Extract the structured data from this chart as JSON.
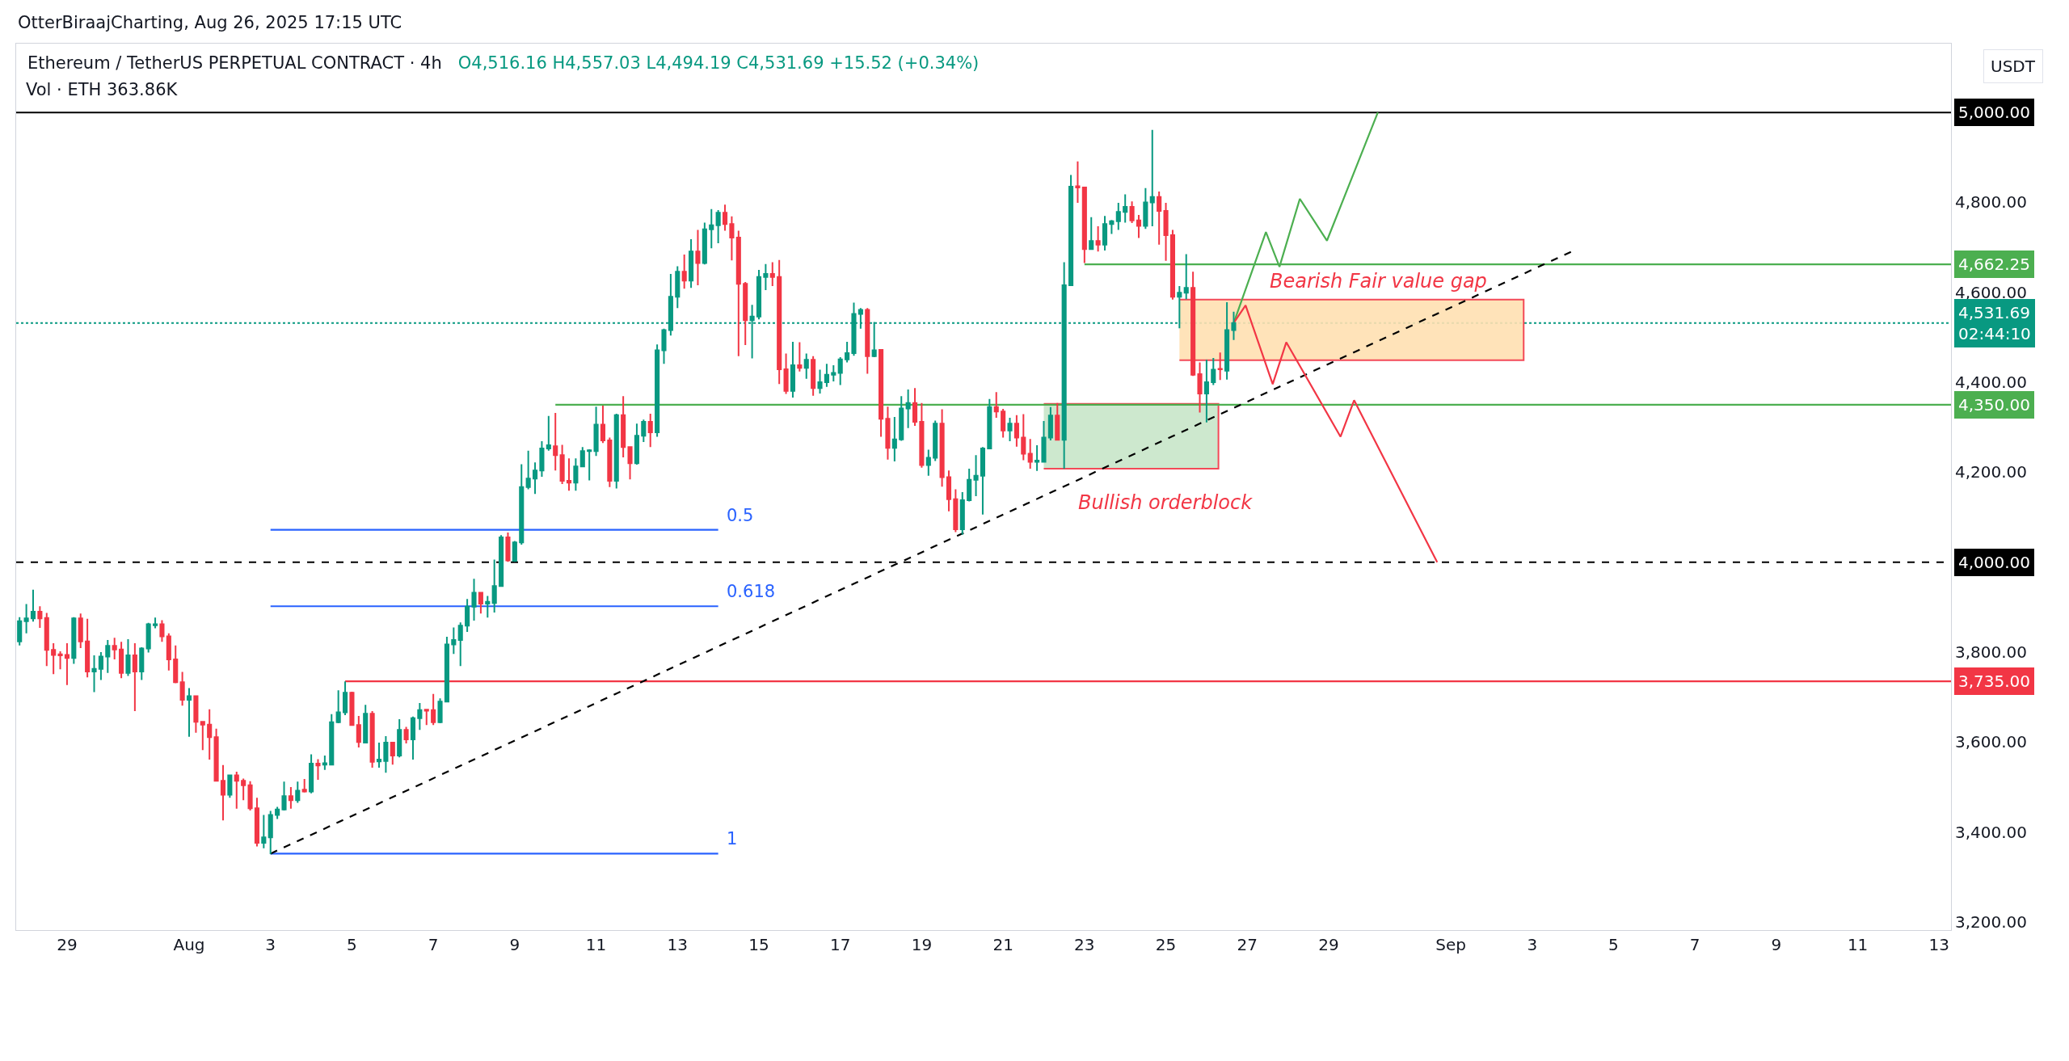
{
  "chart_data": {
    "type": "candlestick",
    "title": "Ethereum / TetherUS PERPETUAL CONTRACT · 4h",
    "subtitle": "O4,516.16 H4,557.03 L4,494.19 C4,531.69 +15.52 (+0.34%)",
    "ylabel": "USDT",
    "annotations": [
      "OtterBiraajCharting, Aug 26, 2025 17:15 UTC",
      "Vol · ETH 363.86K",
      "Bearish Fair value gap",
      "Bullish orderblock"
    ],
    "colors": [
      "#089981",
      "#089981",
      "#089981",
      "#f23645",
      "#f23645",
      "#f23645",
      "#f23645",
      "#f23645",
      "#089981",
      "#f23645",
      "#f23645",
      "#089981",
      "#089981",
      "#089981",
      "#f23645",
      "#f23645",
      "#089981",
      "#f23645",
      "#089981",
      "#089981",
      "#089981",
      "#f23645",
      "#f23645",
      "#f23645",
      "#f23645",
      "#089981",
      "#f23645",
      "#f23645",
      "#f23645",
      "#f23645",
      "#f23645",
      "#089981",
      "#f23645",
      "#f23645",
      "#f23645",
      "#f23645",
      "#089981",
      "#089981",
      "#089981",
      "#089981",
      "#f23645",
      "#089981",
      "#f23645",
      "#089981",
      "#f23645",
      "#089981",
      "#089981",
      "#089981",
      "#089981",
      "#f23645",
      "#f23645",
      "#089981",
      "#f23645",
      "#089981",
      "#089981",
      "#f23645",
      "#089981",
      "#f23645",
      "#089981",
      "#089981",
      "#f23645",
      "#f23645",
      "#089981",
      "#089981",
      "#089981",
      "#089981",
      "#089981",
      "#089981",
      "#f23645",
      "#089981",
      "#089981",
      "#089981",
      "#f23645",
      "#089981",
      "#089981",
      "#089981",
      "#089981",
      "#089981",
      "#089981",
      "#f23645",
      "#f23645",
      "#f23645",
      "#089981",
      "#089981",
      "#089981",
      "#089981",
      "#f23645",
      "#f23645",
      "#089981",
      "#f23645",
      "#f23645",
      "#089981",
      "#089981",
      "#f23645",
      "#089981",
      "#089981",
      "#089981",
      "#089981",
      "#f23645",
      "#089981",
      "#f23645",
      "#089981",
      "#089981",
      "#089981",
      "#f23645",
      "#f23645",
      "#f23645",
      "#f23645",
      "#089981",
      "#089981",
      "#089981",
      "#f23645",
      "#f23645",
      "#f23645",
      "#089981",
      "#f23645",
      "#089981",
      "#f23645",
      "#089981",
      "#089981",
      "#089981",
      "#089981",
      "#089981",
      "#089981",
      "#089981",
      "#f23645",
      "#089981",
      "#f23645",
      "#f23645",
      "#089981",
      "#089981",
      "#089981",
      "#f23645",
      "#f23645",
      "#089981",
      "#089981",
      "#f23645",
      "#f23645",
      "#f23645",
      "#089981",
      "#089981",
      "#089981",
      "#089981",
      "#089981",
      "#f23645",
      "#f23645",
      "#089981",
      "#f23645",
      "#f23645",
      "#f23645",
      "#089981",
      "#089981",
      "#089981",
      "#f23645",
      "#089981",
      "#089981",
      "#f23645",
      "#f23645",
      "#089981",
      "#f23645",
      "#089981",
      "#089981",
      "#089981",
      "#089981",
      "#f23645",
      "#f23645",
      "#089981",
      "#089981",
      "#f23645",
      "#f23645",
      "#f23645",
      "#089981",
      "#089981",
      "#f23645",
      "#f23645",
      "#089981",
      "#089981",
      "#f23645",
      "#089981",
      "#089981"
    ],
    "x": [
      "2025-07-27T20:00",
      "2025-07-28T00:00",
      "2025-07-28T04:00",
      "2025-07-28T08:00",
      "2025-07-28T12:00",
      "2025-07-28T16:00",
      "2025-07-28T20:00",
      "2025-07-29T00:00",
      "2025-07-29T04:00",
      "2025-07-29T08:00",
      "2025-07-29T12:00",
      "2025-07-29T16:00",
      "2025-07-29T20:00",
      "2025-07-30T00:00",
      "2025-07-30T04:00",
      "2025-07-30T08:00",
      "2025-07-30T12:00",
      "2025-07-30T16:00",
      "2025-07-30T20:00",
      "2025-07-31T00:00",
      "2025-07-31T04:00",
      "2025-07-31T08:00",
      "2025-07-31T12:00",
      "2025-07-31T16:00",
      "2025-07-31T20:00",
      "2025-08-01T00:00",
      "2025-08-01T04:00",
      "2025-08-01T08:00",
      "2025-08-01T12:00",
      "2025-08-01T16:00",
      "2025-08-01T20:00",
      "2025-08-02T00:00",
      "2025-08-02T04:00",
      "2025-08-02T08:00",
      "2025-08-02T12:00",
      "2025-08-02T16:00",
      "2025-08-02T20:00",
      "2025-08-03T00:00",
      "2025-08-03T04:00",
      "2025-08-03T08:00",
      "2025-08-03T12:00",
      "2025-08-03T16:00",
      "2025-08-03T20:00",
      "2025-08-04T00:00",
      "2025-08-04T04:00",
      "2025-08-04T08:00",
      "2025-08-04T12:00",
      "2025-08-04T16:00",
      "2025-08-04T20:00",
      "2025-08-05T00:00",
      "2025-08-05T04:00",
      "2025-08-05T08:00",
      "2025-08-05T12:00",
      "2025-08-05T16:00",
      "2025-08-05T20:00",
      "2025-08-06T00:00",
      "2025-08-06T04:00",
      "2025-08-06T08:00",
      "2025-08-06T12:00",
      "2025-08-06T16:00",
      "2025-08-06T20:00",
      "2025-08-07T00:00",
      "2025-08-07T04:00",
      "2025-08-07T08:00",
      "2025-08-07T12:00",
      "2025-08-07T16:00",
      "2025-08-07T20:00",
      "2025-08-08T00:00",
      "2025-08-08T04:00",
      "2025-08-08T08:00",
      "2025-08-08T12:00",
      "2025-08-08T16:00",
      "2025-08-08T20:00",
      "2025-08-09T00:00",
      "2025-08-09T04:00",
      "2025-08-09T08:00",
      "2025-08-09T12:00",
      "2025-08-09T16:00",
      "2025-08-09T20:00",
      "2025-08-10T00:00",
      "2025-08-10T04:00",
      "2025-08-10T08:00",
      "2025-08-10T12:00",
      "2025-08-10T16:00",
      "2025-08-10T20:00",
      "2025-08-11T00:00",
      "2025-08-11T04:00",
      "2025-08-11T08:00",
      "2025-08-11T12:00",
      "2025-08-11T16:00",
      "2025-08-11T20:00",
      "2025-08-12T00:00",
      "2025-08-12T04:00",
      "2025-08-12T08:00",
      "2025-08-12T12:00",
      "2025-08-12T16:00",
      "2025-08-12T20:00",
      "2025-08-13T00:00",
      "2025-08-13T04:00",
      "2025-08-13T08:00",
      "2025-08-13T12:00",
      "2025-08-13T16:00",
      "2025-08-13T20:00",
      "2025-08-14T00:00",
      "2025-08-14T04:00",
      "2025-08-14T08:00",
      "2025-08-14T12:00",
      "2025-08-14T16:00",
      "2025-08-14T20:00",
      "2025-08-15T00:00",
      "2025-08-15T04:00",
      "2025-08-15T08:00",
      "2025-08-15T12:00",
      "2025-08-15T16:00",
      "2025-08-15T20:00",
      "2025-08-16T00:00",
      "2025-08-16T04:00",
      "2025-08-16T08:00",
      "2025-08-16T12:00",
      "2025-08-16T16:00",
      "2025-08-16T20:00",
      "2025-08-17T00:00",
      "2025-08-17T04:00",
      "2025-08-17T08:00",
      "2025-08-17T12:00",
      "2025-08-17T16:00",
      "2025-08-17T20:00",
      "2025-08-18T00:00",
      "2025-08-18T04:00",
      "2025-08-18T08:00",
      "2025-08-18T12:00",
      "2025-08-18T16:00",
      "2025-08-18T20:00",
      "2025-08-19T00:00",
      "2025-08-19T04:00",
      "2025-08-19T08:00",
      "2025-08-19T12:00",
      "2025-08-19T16:00",
      "2025-08-19T20:00",
      "2025-08-20T00:00",
      "2025-08-20T04:00",
      "2025-08-20T08:00",
      "2025-08-20T12:00",
      "2025-08-20T16:00",
      "2025-08-20T20:00",
      "2025-08-21T00:00",
      "2025-08-21T04:00",
      "2025-08-21T08:00",
      "2025-08-21T12:00",
      "2025-08-21T16:00",
      "2025-08-21T20:00",
      "2025-08-22T00:00",
      "2025-08-22T04:00",
      "2025-08-22T08:00",
      "2025-08-22T12:00",
      "2025-08-22T16:00",
      "2025-08-22T20:00",
      "2025-08-23T00:00",
      "2025-08-23T04:00",
      "2025-08-23T08:00",
      "2025-08-23T12:00",
      "2025-08-23T16:00",
      "2025-08-23T20:00",
      "2025-08-24T00:00",
      "2025-08-24T04:00",
      "2025-08-24T08:00",
      "2025-08-24T12:00",
      "2025-08-24T16:00",
      "2025-08-24T20:00",
      "2025-08-25T00:00",
      "2025-08-25T04:00",
      "2025-08-25T08:00",
      "2025-08-25T12:00",
      "2025-08-25T16:00",
      "2025-08-25T20:00",
      "2025-08-26T00:00",
      "2025-08-26T04:00",
      "2025-08-26T08:00",
      "2025-08-26T12:00",
      "2025-08-26T16:00"
    ],
    "ohlc": [
      [
        3824,
        3878,
        3815,
        3869
      ],
      [
        3869,
        3907,
        3842,
        3875
      ],
      [
        3875,
        3939,
        3868,
        3890
      ],
      [
        3890,
        3902,
        3854,
        3875
      ],
      [
        3876,
        3887,
        3769,
        3805
      ],
      [
        3805,
        3820,
        3751,
        3794
      ],
      [
        3795,
        3802,
        3762,
        3793
      ],
      [
        3794,
        3820,
        3727,
        3787
      ],
      [
        3787,
        3878,
        3774,
        3875
      ],
      [
        3875,
        3886,
        3809,
        3824
      ],
      [
        3824,
        3874,
        3744,
        3757
      ],
      [
        3757,
        3793,
        3711,
        3763
      ],
      [
        3763,
        3800,
        3738,
        3790
      ],
      [
        3790,
        3827,
        3754,
        3814
      ],
      [
        3814,
        3832,
        3784,
        3806
      ],
      [
        3806,
        3823,
        3742,
        3754
      ],
      [
        3754,
        3829,
        3747,
        3793
      ],
      [
        3793,
        3820,
        3669,
        3757
      ],
      [
        3757,
        3811,
        3738,
        3808
      ],
      [
        3808,
        3865,
        3799,
        3862
      ],
      [
        3860,
        3877,
        3853,
        3862
      ],
      [
        3862,
        3871,
        3823,
        3835
      ],
      [
        3835,
        3842,
        3759,
        3784
      ],
      [
        3784,
        3815,
        3731,
        3733
      ],
      [
        3733,
        3756,
        3681,
        3694
      ],
      [
        3694,
        3720,
        3612,
        3702
      ],
      [
        3702,
        3704,
        3621,
        3645
      ],
      [
        3645,
        3646,
        3582,
        3639
      ],
      [
        3639,
        3673,
        3561,
        3611
      ],
      [
        3611,
        3630,
        3512,
        3514
      ],
      [
        3514,
        3549,
        3426,
        3483
      ],
      [
        3483,
        3528,
        3476,
        3526
      ],
      [
        3526,
        3534,
        3452,
        3514
      ],
      [
        3514,
        3519,
        3471,
        3504
      ],
      [
        3504,
        3513,
        3448,
        3453
      ],
      [
        3453,
        3476,
        3368,
        3376
      ],
      [
        3376,
        3438,
        3364,
        3388
      ],
      [
        3388,
        3447,
        3351,
        3438
      ],
      [
        3438,
        3456,
        3429,
        3450
      ],
      [
        3450,
        3512,
        3448,
        3480
      ],
      [
        3480,
        3500,
        3452,
        3471
      ],
      [
        3471,
        3512,
        3465,
        3492
      ],
      [
        3494,
        3518,
        3488,
        3490
      ],
      [
        3490,
        3573,
        3486,
        3552
      ],
      [
        3552,
        3562,
        3516,
        3548
      ],
      [
        3550,
        3570,
        3538,
        3553
      ],
      [
        3550,
        3662,
        3549,
        3644
      ],
      [
        3644,
        3715,
        3642,
        3666
      ],
      [
        3666,
        3735,
        3660,
        3710
      ],
      [
        3710,
        3712,
        3636,
        3638
      ],
      [
        3638,
        3658,
        3588,
        3600
      ],
      [
        3599,
        3683,
        3597,
        3663
      ],
      [
        3663,
        3669,
        3543,
        3556
      ],
      [
        3557,
        3599,
        3543,
        3561
      ],
      [
        3558,
        3613,
        3532,
        3599
      ],
      [
        3599,
        3600,
        3550,
        3570
      ],
      [
        3570,
        3651,
        3566,
        3627
      ],
      [
        3627,
        3634,
        3597,
        3606
      ],
      [
        3606,
        3657,
        3561,
        3653
      ],
      [
        3653,
        3687,
        3627,
        3671
      ],
      [
        3672,
        3674,
        3638,
        3670
      ],
      [
        3671,
        3707,
        3638,
        3644
      ],
      [
        3644,
        3697,
        3642,
        3690
      ],
      [
        3690,
        3834,
        3689,
        3817
      ],
      [
        3817,
        3855,
        3796,
        3827
      ],
      [
        3827,
        3866,
        3769,
        3859
      ],
      [
        3859,
        3918,
        3845,
        3901
      ],
      [
        3901,
        3963,
        3870,
        3932
      ],
      [
        3932,
        3932,
        3886,
        3908
      ],
      [
        3908,
        3925,
        3877,
        3912
      ],
      [
        3909,
        4006,
        3888,
        3947
      ],
      [
        3947,
        4060,
        3945,
        4055
      ],
      [
        4055,
        4066,
        4001,
        4004
      ],
      [
        4003,
        4047,
        4001,
        4044
      ],
      [
        4044,
        4218,
        4039,
        4167
      ],
      [
        4167,
        4248,
        4162,
        4186
      ],
      [
        4186,
        4222,
        4152,
        4204
      ],
      [
        4204,
        4269,
        4190,
        4253
      ],
      [
        4253,
        4325,
        4248,
        4260
      ],
      [
        4258,
        4332,
        4204,
        4238
      ],
      [
        4238,
        4261,
        4174,
        4181
      ],
      [
        4181,
        4231,
        4159,
        4177
      ],
      [
        4177,
        4231,
        4159,
        4213
      ],
      [
        4213,
        4256,
        4211,
        4247
      ],
      [
        4247,
        4251,
        4182,
        4249
      ],
      [
        4247,
        4346,
        4236,
        4306
      ],
      [
        4306,
        4348,
        4265,
        4271
      ],
      [
        4271,
        4277,
        4167,
        4181
      ],
      [
        4181,
        4330,
        4164,
        4327
      ],
      [
        4327,
        4369,
        4233,
        4256
      ],
      [
        4256,
        4256,
        4184,
        4220
      ],
      [
        4220,
        4308,
        4217,
        4281
      ],
      [
        4281,
        4317,
        4267,
        4312
      ],
      [
        4312,
        4330,
        4256,
        4289
      ],
      [
        4289,
        4484,
        4279,
        4471
      ],
      [
        4471,
        4519,
        4441,
        4516
      ],
      [
        4516,
        4641,
        4504,
        4590
      ],
      [
        4590,
        4658,
        4565,
        4646
      ],
      [
        4646,
        4684,
        4608,
        4626
      ],
      [
        4626,
        4718,
        4610,
        4691
      ],
      [
        4691,
        4739,
        4616,
        4665
      ],
      [
        4665,
        4755,
        4662,
        4740
      ],
      [
        4740,
        4785,
        4698,
        4749
      ],
      [
        4749,
        4783,
        4709,
        4777
      ],
      [
        4777,
        4795,
        4737,
        4752
      ],
      [
        4752,
        4769,
        4671,
        4722
      ],
      [
        4722,
        4737,
        4458,
        4619
      ],
      [
        4619,
        4623,
        4483,
        4538
      ],
      [
        4538,
        4572,
        4453,
        4546
      ],
      [
        4546,
        4650,
        4540,
        4634
      ],
      [
        4634,
        4663,
        4605,
        4641
      ],
      [
        4641,
        4667,
        4614,
        4634
      ],
      [
        4634,
        4672,
        4396,
        4429
      ],
      [
        4429,
        4464,
        4374,
        4381
      ],
      [
        4381,
        4490,
        4366,
        4438
      ],
      [
        4438,
        4489,
        4424,
        4432
      ],
      [
        4432,
        4464,
        4408,
        4450
      ],
      [
        4450,
        4458,
        4370,
        4387
      ],
      [
        4387,
        4428,
        4375,
        4400
      ],
      [
        4400,
        4441,
        4390,
        4417
      ],
      [
        4417,
        4438,
        4402,
        4421
      ],
      [
        4421,
        4456,
        4394,
        4451
      ],
      [
        4451,
        4490,
        4444,
        4465
      ],
      [
        4465,
        4577,
        4459,
        4552
      ],
      [
        4552,
        4565,
        4519,
        4561
      ],
      [
        4561,
        4565,
        4419,
        4458
      ],
      [
        4458,
        4534,
        4456,
        4471
      ],
      [
        4472,
        4474,
        4279,
        4319
      ],
      [
        4319,
        4346,
        4228,
        4254
      ],
      [
        4254,
        4323,
        4224,
        4273
      ],
      [
        4273,
        4369,
        4270,
        4342
      ],
      [
        4342,
        4384,
        4298,
        4354
      ],
      [
        4354,
        4387,
        4303,
        4312
      ],
      [
        4312,
        4354,
        4210,
        4216
      ],
      [
        4216,
        4250,
        4192,
        4232
      ],
      [
        4232,
        4315,
        4225,
        4308
      ],
      [
        4308,
        4340,
        4168,
        4189
      ],
      [
        4189,
        4204,
        4113,
        4140
      ],
      [
        4140,
        4162,
        4067,
        4073
      ],
      [
        4073,
        4156,
        4061,
        4138
      ],
      [
        4138,
        4208,
        4135,
        4183
      ],
      [
        4183,
        4238,
        4147,
        4192
      ],
      [
        4192,
        4256,
        4106,
        4253
      ],
      [
        4253,
        4363,
        4253,
        4345
      ],
      [
        4345,
        4378,
        4321,
        4335
      ],
      [
        4335,
        4341,
        4277,
        4293
      ],
      [
        4293,
        4321,
        4269,
        4308
      ],
      [
        4308,
        4327,
        4257,
        4277
      ],
      [
        4277,
        4329,
        4227,
        4241
      ],
      [
        4241,
        4274,
        4208,
        4223
      ],
      [
        4223,
        4260,
        4203,
        4226
      ],
      [
        4223,
        4314,
        4223,
        4277
      ],
      [
        4277,
        4345,
        4271,
        4326
      ],
      [
        4326,
        4354,
        4272,
        4272
      ],
      [
        4272,
        4667,
        4208,
        4616
      ],
      [
        4616,
        4861,
        4616,
        4835
      ],
      [
        4836,
        4891,
        4799,
        4833
      ],
      [
        4833,
        4833,
        4665,
        4696
      ],
      [
        4696,
        4767,
        4696,
        4714
      ],
      [
        4714,
        4747,
        4691,
        4706
      ],
      [
        4706,
        4770,
        4693,
        4752
      ],
      [
        4752,
        4761,
        4730,
        4758
      ],
      [
        4758,
        4799,
        4739,
        4779
      ],
      [
        4779,
        4818,
        4755,
        4790
      ],
      [
        4790,
        4802,
        4754,
        4760
      ],
      [
        4760,
        4772,
        4721,
        4748
      ],
      [
        4748,
        4832,
        4741,
        4800
      ],
      [
        4800,
        4961,
        4747,
        4812
      ],
      [
        4812,
        4824,
        4706,
        4781
      ],
      [
        4781,
        4799,
        4670,
        4727
      ],
      [
        4727,
        4739,
        4584,
        4590
      ],
      [
        4590,
        4614,
        4520,
        4599
      ],
      [
        4599,
        4685,
        4585,
        4610
      ],
      [
        4610,
        4646,
        4414,
        4417
      ],
      [
        4418,
        4444,
        4333,
        4375
      ],
      [
        4375,
        4450,
        4311,
        4400
      ],
      [
        4400,
        4454,
        4394,
        4428
      ],
      [
        4430,
        4466,
        4405,
        4429
      ],
      [
        4426,
        4578,
        4406,
        4516
      ],
      [
        4516.16,
        4557.03,
        4494.19,
        4531.69
      ]
    ],
    "series": [
      {
        "type": "area",
        "x": [
          "2025-08-25T08:00",
          "2025-09-02T19:00",
          "2025-09-02T19:00",
          "2025-08-25T08:00"
        ],
        "values": [
          4584,
          4584,
          4449,
          4449
        ],
        "color": "#ffe0b2"
      },
      {
        "type": "area",
        "x": [
          "2025-08-22T00:00",
          "2025-08-26T07:00",
          "2025-08-26T07:00",
          "2025-08-22T00:00"
        ],
        "values": [
          4352,
          4352,
          4208,
          4208
        ],
        "color": "#c8e6c9"
      },
      {
        "type": "line",
        "name": "0.5",
        "x": [
          "2025-08-03T00:00",
          "2025-08-14T00:00"
        ],
        "values": [
          4072,
          4072
        ],
        "color": "#2962ff",
        "line_style": "solid"
      },
      {
        "type": "line",
        "name": "0.618",
        "x": [
          "2025-08-03T00:00",
          "2025-08-14T00:00"
        ],
        "values": [
          3902,
          3902
        ],
        "color": "#2962ff",
        "line_style": "solid"
      },
      {
        "type": "line",
        "name": "1",
        "x": [
          "2025-08-03T00:00",
          "2025-08-14T00:00"
        ],
        "values": [
          3352,
          3352
        ],
        "color": "#2962ff",
        "line_style": "solid"
      },
      {
        "type": "line",
        "name": "4,662.25",
        "x": [
          "2025-08-23T00:00",
          "2025-09-13T07:00"
        ],
        "values": [
          4662.25,
          4662.25
        ],
        "color": "#4caf50",
        "line_style": "solid"
      },
      {
        "type": "line",
        "name": "4,350.00",
        "x": [
          "2025-08-10T00:00",
          "2025-09-13T07:00"
        ],
        "values": [
          4350,
          4350
        ],
        "color": "#4caf50",
        "line_style": "solid"
      },
      {
        "type": "line",
        "name": "3,735.00",
        "x": [
          "2025-08-04T20:00",
          "2025-09-13T07:00"
        ],
        "values": [
          3735,
          3735
        ],
        "color": "#f23645",
        "line_style": "solid"
      },
      {
        "type": "line",
        "x": [
          "2025-08-03T00:00",
          "2025-09-04T00:00"
        ],
        "values": [
          3352,
          4692
        ],
        "color": "#000000",
        "line_style": "dashed"
      },
      {
        "type": "line",
        "x": [
          "2025-08-26T16:00",
          "2025-08-27T11:00",
          "2025-08-27T19:00",
          "2025-08-28T07:00",
          "2025-08-28T23:00",
          "2025-08-30T05:00"
        ],
        "values": [
          4532,
          4734,
          4657,
          4808,
          4715,
          5000
        ],
        "color": "#4caf50",
        "line_style": "solid"
      },
      {
        "type": "line",
        "x": [
          "2025-08-26T16:00",
          "2025-08-26T23:00",
          "2025-08-27T15:00",
          "2025-08-27T23:00",
          "2025-08-29T07:00",
          "2025-08-29T15:00",
          "2025-08-31T16:00"
        ],
        "values": [
          4532,
          4571,
          4396,
          4489,
          4279,
          4360,
          4000
        ],
        "color": "#f23645",
        "line_style": "solid"
      }
    ],
    "ref_lines": [
      {
        "axis": "y",
        "value": 5000,
        "label": "5,000.00",
        "color": "#000000",
        "line_style": "solid"
      },
      {
        "axis": "y",
        "value": 4531.69,
        "label": "4,531.69\n02:44:10",
        "color": "#089981",
        "line_style": "dotted"
      },
      {
        "axis": "y",
        "value": 4000,
        "label": "4,000.00",
        "color": "#000000",
        "line_style": "dashed"
      }
    ],
    "xlim": [
      "2025-07-27T18:00",
      "2025-09-13T07:00"
    ],
    "xticks": [
      {
        "value": "2025-07-29",
        "label": "29"
      },
      {
        "value": "2025-08-01",
        "label": "Aug"
      },
      {
        "value": "2025-08-03",
        "label": "3"
      },
      {
        "value": "2025-08-05",
        "label": "5"
      },
      {
        "value": "2025-08-07",
        "label": "7"
      },
      {
        "value": "2025-08-09",
        "label": "9"
      },
      {
        "value": "2025-08-11",
        "label": "11"
      },
      {
        "value": "2025-08-13",
        "label": "13"
      },
      {
        "value": "2025-08-15",
        "label": "15"
      },
      {
        "value": "2025-08-17",
        "label": "17"
      },
      {
        "value": "2025-08-19",
        "label": "19"
      },
      {
        "value": "2025-08-21",
        "label": "21"
      },
      {
        "value": "2025-08-23",
        "label": "23"
      },
      {
        "value": "2025-08-25",
        "label": "25"
      },
      {
        "value": "2025-08-27",
        "label": "27"
      },
      {
        "value": "2025-08-29",
        "label": "29"
      },
      {
        "value": "2025-09-01",
        "label": "Sep"
      },
      {
        "value": "2025-09-03",
        "label": "3"
      },
      {
        "value": "2025-09-05",
        "label": "5"
      },
      {
        "value": "2025-09-07",
        "label": "7"
      },
      {
        "value": "2025-09-09",
        "label": "9"
      },
      {
        "value": "2025-09-11",
        "label": "11"
      },
      {
        "value": "2025-09-13",
        "label": "13"
      }
    ],
    "ylim": [
      3182,
      5153
    ],
    "yticks": [
      {
        "value": 3200,
        "label": "3,200.00"
      },
      {
        "value": 3400,
        "label": "3,400.00"
      },
      {
        "value": 3600,
        "label": "3,600.00"
      },
      {
        "value": 3800,
        "label": "3,800.00"
      },
      {
        "value": 4200,
        "label": "4,200.00"
      },
      {
        "value": 4400,
        "label": "4,400.00"
      },
      {
        "value": 4600,
        "label": "4,600.00"
      },
      {
        "value": 4800,
        "label": "4,800.00"
      }
    ],
    "grid": false
  }
}
